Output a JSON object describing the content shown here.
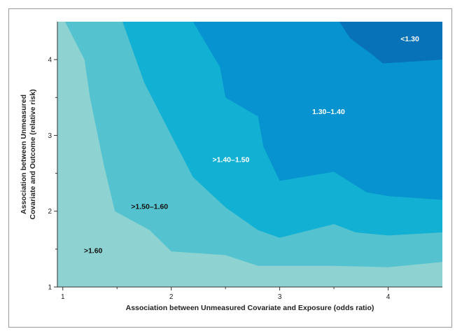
{
  "chart_data": {
    "type": "contour",
    "xlabel": "Association between Unmeasured Covariate and Exposure (odds ratio)",
    "ylabel_lines": [
      "Association between Unmeasured",
      "Covariate and Outcome (relative risk)"
    ],
    "xlim": [
      0.95,
      4.5
    ],
    "ylim": [
      1.0,
      4.5
    ],
    "x_ticks": [
      1,
      2,
      3,
      4
    ],
    "y_ticks": [
      1,
      2,
      3,
      4
    ],
    "grid": false,
    "regions": [
      {
        "name": ">1.60",
        "color": "#8ed3d2",
        "label_x": 1.28,
        "label_y": 1.45,
        "label_color": "#111111"
      },
      {
        "name": ">1.50–1.60",
        "color": "#55c3cf",
        "label_x": 1.8,
        "label_y": 2.03,
        "label_color": "#111111"
      },
      {
        "name": ">1.40–1.50",
        "color": "#12b0d2",
        "label_x": 2.55,
        "label_y": 2.65,
        "label_color": "#ffffff"
      },
      {
        "name": "1.30–1.40",
        "color": "#0693cf",
        "label_x": 3.45,
        "label_y": 3.28,
        "label_color": "#ffffff"
      },
      {
        "name": "<1.30",
        "color": "#0772b8",
        "label_x": 4.2,
        "label_y": 4.24,
        "label_color": "#ffffff"
      }
    ],
    "boundaries": [
      {
        "between": [
          ">1.60",
          ">1.50–1.60"
        ],
        "points": [
          [
            1.02,
            4.5
          ],
          [
            1.2,
            4.0
          ],
          [
            1.25,
            3.5
          ],
          [
            1.38,
            2.6
          ],
          [
            1.48,
            2.0
          ],
          [
            1.8,
            1.75
          ],
          [
            2.0,
            1.47
          ],
          [
            2.5,
            1.42
          ],
          [
            2.8,
            1.28
          ],
          [
            3.5,
            1.28
          ],
          [
            4.0,
            1.26
          ],
          [
            4.5,
            1.33
          ]
        ]
      },
      {
        "between": [
          ">1.50–1.60",
          ">1.40–1.50"
        ],
        "points": [
          [
            1.55,
            4.5
          ],
          [
            1.75,
            3.7
          ],
          [
            2.0,
            3.0
          ],
          [
            2.2,
            2.45
          ],
          [
            2.5,
            2.05
          ],
          [
            2.8,
            1.75
          ],
          [
            3.0,
            1.65
          ],
          [
            3.5,
            1.83
          ],
          [
            3.7,
            1.72
          ],
          [
            4.0,
            1.68
          ],
          [
            4.5,
            1.72
          ]
        ]
      },
      {
        "between": [
          ">1.40–1.50",
          "1.30–1.40"
        ],
        "points": [
          [
            2.2,
            4.5
          ],
          [
            2.45,
            3.9
          ],
          [
            2.5,
            3.5
          ],
          [
            2.8,
            3.25
          ],
          [
            2.85,
            2.85
          ],
          [
            3.0,
            2.4
          ],
          [
            3.5,
            2.52
          ],
          [
            3.8,
            2.25
          ],
          [
            4.0,
            2.2
          ],
          [
            4.5,
            2.15
          ]
        ]
      },
      {
        "between": [
          "1.30–1.40",
          "<1.30"
        ],
        "points": [
          [
            3.55,
            4.5
          ],
          [
            3.65,
            4.28
          ],
          [
            3.85,
            4.07
          ],
          [
            3.95,
            3.95
          ],
          [
            4.5,
            4.0
          ]
        ]
      }
    ]
  }
}
